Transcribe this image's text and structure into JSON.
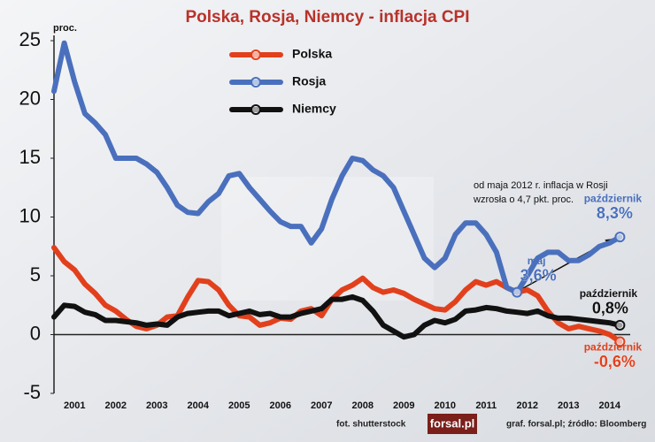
{
  "chart_data": {
    "type": "line",
    "title": "Polska, Rosja, Niemcy - inflacja CPI",
    "y_unit": "proc.",
    "annotation": [
      "od maja 2012 r. inflacja w Rosji",
      "wzrosła o 4,7 pkt. proc."
    ],
    "credit": "fot. shutterstock",
    "logo": "forsal.pl",
    "source": "graf. forsal.pl; źródło: Bloomberg",
    "xlim": [
      2001,
      2015
    ],
    "xticks": [
      {
        "value": 2001.5,
        "label": "2001"
      },
      {
        "value": 2002.5,
        "label": "2002"
      },
      {
        "value": 2003.5,
        "label": "2003"
      },
      {
        "value": 2004.5,
        "label": "2004"
      },
      {
        "value": 2005.5,
        "label": "2005"
      },
      {
        "value": 2006.5,
        "label": "2006"
      },
      {
        "value": 2007.5,
        "label": "2007"
      },
      {
        "value": 2008.5,
        "label": "2008"
      },
      {
        "value": 2009.5,
        "label": "2009"
      },
      {
        "value": 2010.5,
        "label": "2010"
      },
      {
        "value": 2011.5,
        "label": "2011"
      },
      {
        "value": 2012.5,
        "label": "2012"
      },
      {
        "value": 2013.5,
        "label": "2013"
      },
      {
        "value": 2014.5,
        "label": "2014"
      }
    ],
    "ylim": [
      -5,
      25
    ],
    "yticks": [
      -5,
      0,
      5,
      10,
      15,
      20,
      25
    ],
    "grid": false,
    "legend": "top-left",
    "x": [
      2001,
      2001.25,
      2001.5,
      2001.75,
      2002,
      2002.25,
      2002.5,
      2002.75,
      2003,
      2003.25,
      2003.5,
      2003.75,
      2004,
      2004.25,
      2004.5,
      2004.75,
      2005,
      2005.25,
      2005.5,
      2005.75,
      2006,
      2006.25,
      2006.5,
      2006.75,
      2007,
      2007.25,
      2007.5,
      2007.75,
      2008,
      2008.25,
      2008.5,
      2008.75,
      2009,
      2009.25,
      2009.5,
      2009.75,
      2010,
      2010.25,
      2010.5,
      2010.75,
      2011,
      2011.25,
      2011.5,
      2011.75,
      2012,
      2012.25,
      2012.5,
      2012.75,
      2013,
      2013.25,
      2013.5,
      2013.75,
      2014,
      2014.25,
      2014.5,
      2014.75
    ],
    "series": [
      {
        "name": "Polska",
        "color": "#e2401c",
        "values": [
          7.4,
          6.2,
          5.5,
          4.3,
          3.5,
          2.5,
          2.0,
          1.3,
          0.7,
          0.5,
          0.8,
          1.5,
          1.6,
          3.2,
          4.6,
          4.5,
          3.8,
          2.5,
          1.6,
          1.5,
          0.8,
          1.0,
          1.4,
          1.3,
          2.0,
          2.2,
          1.6,
          3.0,
          3.8,
          4.2,
          4.8,
          4.0,
          3.6,
          3.8,
          3.5,
          3.0,
          2.6,
          2.2,
          2.1,
          2.8,
          3.8,
          4.5,
          4.2,
          4.5,
          4.0,
          3.6,
          3.8,
          3.3,
          2.0,
          1.0,
          0.5,
          0.7,
          0.5,
          0.3,
          0.0,
          -0.6
        ],
        "value_labels": [
          null,
          null,
          null,
          null,
          null,
          null,
          null,
          null,
          null,
          null,
          null,
          null,
          null,
          null,
          null,
          null,
          null,
          null,
          null,
          null,
          null,
          null,
          null,
          null,
          null,
          null,
          null,
          null,
          null,
          null,
          null,
          null,
          null,
          null,
          null,
          null,
          null,
          null,
          null,
          null,
          null,
          null,
          null,
          null,
          null,
          null,
          null,
          null,
          null,
          null,
          null,
          null,
          null,
          null,
          null,
          "-0,6%"
        ],
        "value_notes": [
          null,
          null,
          null,
          null,
          null,
          null,
          null,
          null,
          null,
          null,
          null,
          null,
          null,
          null,
          null,
          null,
          null,
          null,
          null,
          null,
          null,
          null,
          null,
          null,
          null,
          null,
          null,
          null,
          null,
          null,
          null,
          null,
          null,
          null,
          null,
          null,
          null,
          null,
          null,
          null,
          null,
          null,
          null,
          null,
          null,
          null,
          null,
          null,
          null,
          null,
          null,
          null,
          null,
          null,
          null,
          "październik"
        ]
      },
      {
        "name": "Rosja",
        "color": "#4a70bd",
        "values": [
          20.7,
          24.8,
          21.5,
          18.8,
          18.0,
          17.0,
          15.0,
          15.0,
          15.0,
          14.5,
          13.8,
          12.5,
          11.0,
          10.4,
          10.3,
          11.3,
          12.0,
          13.5,
          13.7,
          12.5,
          11.5,
          10.5,
          9.6,
          9.2,
          9.2,
          7.8,
          9.0,
          11.5,
          13.5,
          15.0,
          14.8,
          14.0,
          13.5,
          12.5,
          10.5,
          8.5,
          6.5,
          5.7,
          6.5,
          8.5,
          9.5,
          9.5,
          8.5,
          7.0,
          4.0,
          3.6,
          5.0,
          6.5,
          7.0,
          7.0,
          6.3,
          6.3,
          6.8,
          7.5,
          7.8,
          8.3
        ],
        "value_labels": [
          null,
          null,
          null,
          null,
          null,
          null,
          null,
          null,
          null,
          null,
          null,
          null,
          null,
          null,
          null,
          null,
          null,
          null,
          null,
          null,
          null,
          null,
          null,
          null,
          null,
          null,
          null,
          null,
          null,
          null,
          null,
          null,
          null,
          null,
          null,
          null,
          null,
          null,
          null,
          null,
          null,
          null,
          null,
          null,
          null,
          "3,6%",
          null,
          null,
          null,
          null,
          null,
          null,
          null,
          null,
          null,
          "8,3%"
        ],
        "value_notes": [
          null,
          null,
          null,
          null,
          null,
          null,
          null,
          null,
          null,
          null,
          null,
          null,
          null,
          null,
          null,
          null,
          null,
          null,
          null,
          null,
          null,
          null,
          null,
          null,
          null,
          null,
          null,
          null,
          null,
          null,
          null,
          null,
          null,
          null,
          null,
          null,
          null,
          null,
          null,
          null,
          null,
          null,
          null,
          null,
          null,
          "maj",
          null,
          null,
          null,
          null,
          null,
          null,
          null,
          null,
          null,
          "październik"
        ]
      },
      {
        "name": "Niemcy",
        "color": "#111111",
        "values": [
          1.5,
          2.5,
          2.4,
          1.9,
          1.7,
          1.2,
          1.2,
          1.1,
          1.0,
          0.8,
          0.9,
          0.8,
          1.5,
          1.8,
          1.9,
          2.0,
          2.0,
          1.6,
          1.8,
          2.0,
          1.7,
          1.8,
          1.5,
          1.5,
          1.8,
          2.0,
          2.2,
          3.0,
          3.0,
          3.2,
          2.9,
          2.0,
          0.8,
          0.3,
          -0.2,
          0.0,
          0.8,
          1.2,
          1.0,
          1.3,
          2.0,
          2.1,
          2.3,
          2.2,
          2.0,
          1.9,
          1.8,
          2.0,
          1.6,
          1.4,
          1.4,
          1.3,
          1.2,
          1.1,
          1.0,
          0.8
        ],
        "value_labels": [
          null,
          null,
          null,
          null,
          null,
          null,
          null,
          null,
          null,
          null,
          null,
          null,
          null,
          null,
          null,
          null,
          null,
          null,
          null,
          null,
          null,
          null,
          null,
          null,
          null,
          null,
          null,
          null,
          null,
          null,
          null,
          null,
          null,
          null,
          null,
          null,
          null,
          null,
          null,
          null,
          null,
          null,
          null,
          null,
          null,
          null,
          null,
          null,
          null,
          null,
          null,
          null,
          null,
          null,
          null,
          "0,8%"
        ],
        "value_notes": [
          null,
          null,
          null,
          null,
          null,
          null,
          null,
          null,
          null,
          null,
          null,
          null,
          null,
          null,
          null,
          null,
          null,
          null,
          null,
          null,
          null,
          null,
          null,
          null,
          null,
          null,
          null,
          null,
          null,
          null,
          null,
          null,
          null,
          null,
          null,
          null,
          null,
          null,
          null,
          null,
          null,
          null,
          null,
          null,
          null,
          null,
          null,
          null,
          null,
          null,
          null,
          null,
          null,
          null,
          null,
          "październik"
        ]
      }
    ]
  }
}
